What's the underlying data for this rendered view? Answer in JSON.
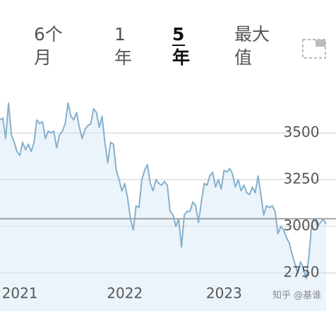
{
  "tabs": [
    {
      "lines": [
        "6个",
        "月"
      ],
      "selected": false
    },
    {
      "lines": [
        "1",
        "年"
      ],
      "selected": false
    },
    {
      "lines": [
        "5",
        "年"
      ],
      "selected": true
    },
    {
      "lines": [
        "最大",
        "值"
      ],
      "selected": false
    }
  ],
  "watermark": "知乎 @基谁",
  "chart_data": {
    "type": "line",
    "categories": [
      null,
      null,
      null,
      null,
      null,
      null,
      null,
      "2021",
      null,
      null,
      null,
      null,
      null,
      null,
      null,
      null,
      null,
      null,
      null,
      null,
      null,
      null,
      null,
      null,
      null,
      null,
      null,
      null,
      null,
      null,
      null,
      null,
      null,
      null,
      null,
      null,
      null,
      null,
      null,
      null,
      null,
      null,
      null,
      null,
      "2022",
      null,
      null,
      null,
      null,
      null,
      null,
      null,
      null,
      null,
      null,
      null,
      null,
      null,
      null,
      null,
      null,
      null,
      null,
      null,
      null,
      null,
      null,
      null,
      null,
      null,
      null,
      null,
      null,
      null,
      null,
      null,
      null,
      null,
      null,
      "2023",
      null,
      null,
      null,
      null,
      null,
      null,
      null,
      null,
      null,
      null,
      null,
      null,
      null,
      null,
      null,
      null,
      null,
      null,
      null,
      null,
      null,
      null,
      null,
      null,
      null,
      null,
      null,
      null,
      null,
      null,
      null,
      null,
      null,
      null,
      null,
      null
    ],
    "series": [
      {
        "color": "#86b0cc",
        "fill": "#ecf4fb",
        "values": [
          3570,
          3580,
          3470,
          3660,
          3490,
          3450,
          3400,
          3380,
          3450,
          3410,
          3440,
          3400,
          3450,
          3570,
          3550,
          3560,
          3470,
          3510,
          3500,
          3510,
          3420,
          3490,
          3510,
          3550,
          3660,
          3590,
          3570,
          3610,
          3530,
          3470,
          3520,
          3540,
          3550,
          3630,
          3610,
          3530,
          3590,
          3450,
          3340,
          3450,
          3440,
          3300,
          3250,
          3190,
          3230,
          3150,
          3040,
          2980,
          3110,
          3100,
          3250,
          3300,
          3330,
          3230,
          3190,
          3250,
          3230,
          3220,
          3240,
          3220,
          3080,
          3060,
          3000,
          3040,
          2890,
          3060,
          3080,
          3080,
          3130,
          3110,
          3020,
          3130,
          3230,
          3220,
          3270,
          3290,
          3210,
          3250,
          3200,
          3300,
          3290,
          3310,
          3280,
          3210,
          3250,
          3190,
          3220,
          3180,
          3170,
          3210,
          3180,
          3270,
          3170,
          3060,
          3110,
          3100,
          3110,
          3080,
          2960,
          3000,
          2980,
          2940,
          2910,
          2850,
          2800,
          2750,
          2810,
          2770,
          2720,
          2850,
          3020,
          3040,
          3000,
          3020,
          3040,
          3010
        ]
      }
    ],
    "ylim": [
      2545,
      3720
    ],
    "yticks": [
      2750,
      3000,
      3250,
      3500
    ],
    "grid": true,
    "reference_value": 3040
  }
}
